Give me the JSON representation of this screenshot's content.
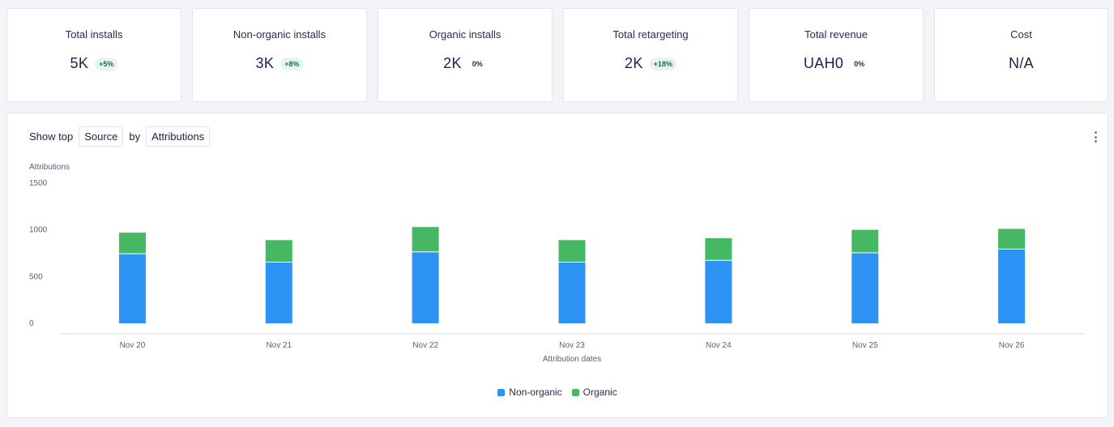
{
  "kpis": [
    {
      "title": "Total installs",
      "value": "5K",
      "change": "+5%",
      "trend": "pos"
    },
    {
      "title": "Non-organic installs",
      "value": "3K",
      "change": "+8%",
      "trend": "pos"
    },
    {
      "title": "Organic installs",
      "value": "2K",
      "change": "0%",
      "trend": "neutral"
    },
    {
      "title": "Total retargeting",
      "value": "2K",
      "change": "+18%",
      "trend": "pos"
    },
    {
      "title": "Total revenue",
      "value": "UAH0",
      "change": "0%",
      "trend": "neutral"
    },
    {
      "title": "Cost",
      "value": "N/A",
      "change": "",
      "trend": "none"
    }
  ],
  "controls": {
    "show_top_label": "Show top",
    "dimension": "Source",
    "by_label": "by",
    "metric": "Attributions"
  },
  "colors": {
    "non_organic": "#2d93f5",
    "organic": "#46b864",
    "axis": "#d9dbe3",
    "tick_text": "#5c5e72"
  },
  "chart_data": {
    "type": "bar",
    "stacked": true,
    "title": "",
    "ylabel": "Attributions",
    "xlabel": "Attribution dates",
    "ylim": [
      0,
      1500
    ],
    "yticks": [
      0,
      500,
      1000,
      1500
    ],
    "categories": [
      "Nov 20",
      "Nov 21",
      "Nov 22",
      "Nov 23",
      "Nov 24",
      "Nov 25",
      "Nov 26"
    ],
    "series": [
      {
        "name": "Non-organic",
        "values": [
          740,
          650,
          760,
          650,
          670,
          750,
          790
        ]
      },
      {
        "name": "Organic",
        "values": [
          230,
          240,
          270,
          240,
          240,
          250,
          220
        ]
      }
    ],
    "legend": "bottom-center",
    "grid": false
  }
}
